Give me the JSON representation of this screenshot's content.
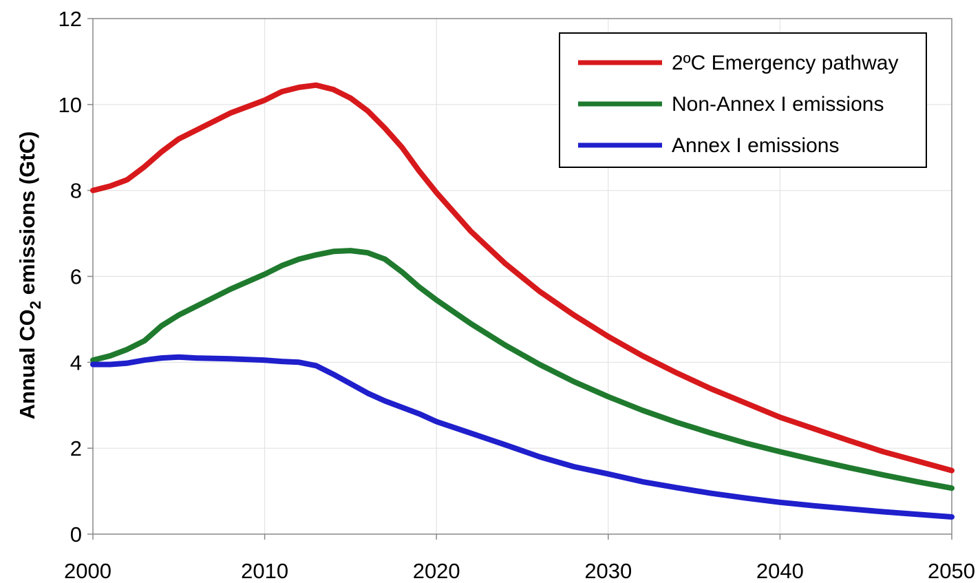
{
  "chart_data": {
    "type": "line",
    "title": "",
    "xlabel": "",
    "ylabel": {
      "prefix": "Annual CO",
      "subscript": "2",
      "suffix": " emissions (GtC)"
    },
    "xlim": [
      2000,
      2050
    ],
    "ylim": [
      0,
      12
    ],
    "xticks": [
      "2000",
      "2010",
      "2020",
      "2030",
      "2040",
      "2050"
    ],
    "yticks": [
      "0",
      "2",
      "4",
      "6",
      "8",
      "10",
      "12"
    ],
    "grid": true,
    "legend_position": "top-right",
    "series": [
      {
        "name": "2ºC Emergency pathway",
        "color": "#d7191c",
        "x": [
          2000,
          2001,
          2002,
          2003,
          2004,
          2005,
          2006,
          2008,
          2010,
          2011,
          2012,
          2013,
          2014,
          2015,
          2016,
          2017,
          2018,
          2019,
          2020,
          2022,
          2024,
          2026,
          2028,
          2030,
          2032,
          2034,
          2036,
          2038,
          2040,
          2042,
          2044,
          2046,
          2048,
          2050
        ],
        "y": [
          8.0,
          8.1,
          8.25,
          8.55,
          8.9,
          9.2,
          9.4,
          9.8,
          10.1,
          10.3,
          10.4,
          10.45,
          10.35,
          10.15,
          9.85,
          9.45,
          9.0,
          8.45,
          7.95,
          7.05,
          6.3,
          5.65,
          5.1,
          4.6,
          4.15,
          3.75,
          3.38,
          3.05,
          2.72,
          2.45,
          2.18,
          1.92,
          1.7,
          1.48
        ]
      },
      {
        "name": "Non-Annex I emissions",
        "color": "#1f7a2e",
        "x": [
          2000,
          2001,
          2002,
          2003,
          2004,
          2005,
          2006,
          2008,
          2010,
          2011,
          2012,
          2013,
          2014,
          2015,
          2016,
          2017,
          2018,
          2019,
          2020,
          2022,
          2024,
          2026,
          2028,
          2030,
          2032,
          2034,
          2036,
          2038,
          2040,
          2042,
          2044,
          2046,
          2048,
          2050
        ],
        "y": [
          4.05,
          4.15,
          4.3,
          4.5,
          4.85,
          5.1,
          5.3,
          5.7,
          6.05,
          6.25,
          6.4,
          6.5,
          6.58,
          6.6,
          6.55,
          6.4,
          6.1,
          5.75,
          5.45,
          4.9,
          4.4,
          3.95,
          3.55,
          3.2,
          2.88,
          2.6,
          2.35,
          2.12,
          1.92,
          1.73,
          1.55,
          1.38,
          1.22,
          1.07
        ]
      },
      {
        "name": "Annex I emissions",
        "color": "#1f1fcc",
        "x": [
          2000,
          2001,
          2002,
          2003,
          2004,
          2005,
          2006,
          2008,
          2010,
          2011,
          2012,
          2013,
          2014,
          2015,
          2016,
          2017,
          2018,
          2019,
          2020,
          2022,
          2024,
          2026,
          2028,
          2030,
          2032,
          2034,
          2036,
          2038,
          2040,
          2042,
          2044,
          2046,
          2048,
          2050
        ],
        "y": [
          3.95,
          3.95,
          3.98,
          4.05,
          4.1,
          4.12,
          4.1,
          4.08,
          4.05,
          4.02,
          4.0,
          3.92,
          3.72,
          3.5,
          3.28,
          3.1,
          2.95,
          2.8,
          2.62,
          2.35,
          2.08,
          1.8,
          1.57,
          1.4,
          1.22,
          1.08,
          0.95,
          0.84,
          0.74,
          0.66,
          0.59,
          0.52,
          0.46,
          0.4
        ]
      }
    ]
  }
}
